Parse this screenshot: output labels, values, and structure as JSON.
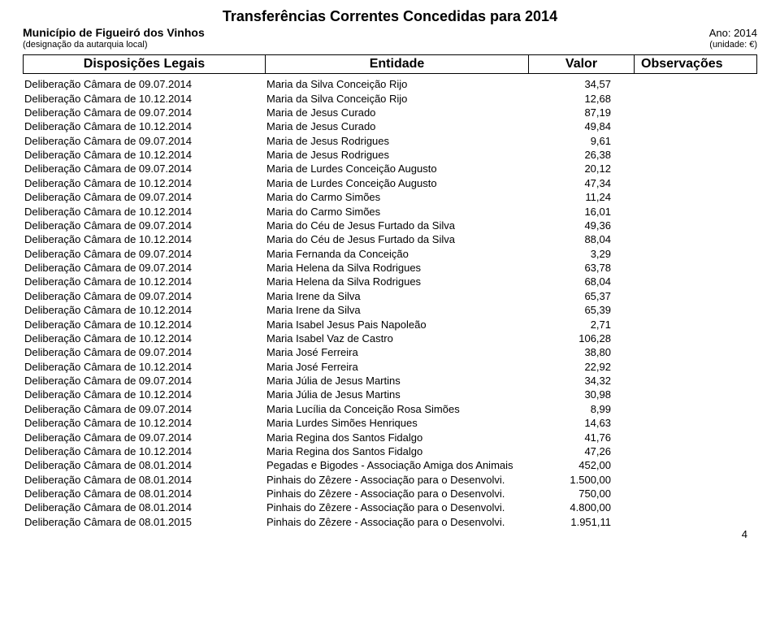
{
  "title": "Transferências Correntes Concedidas para 2014",
  "header": {
    "municipality": "Município de Figueiró dos Vinhos",
    "year_label": "Ano: 2014",
    "designation": "(designação da autarquia local)",
    "unit": "(unidade: €)"
  },
  "columns": {
    "disposicoes": "Disposições Legais",
    "entidade": "Entidade",
    "valor": "Valor",
    "observacoes": "Observações"
  },
  "rows": [
    {
      "d": "Deliberação Câmara de 09.07.2014",
      "e": "Maria da Silva Conceição Rijo",
      "v": "34,57"
    },
    {
      "d": "Deliberação Câmara de 10.12.2014",
      "e": "Maria da Silva Conceição Rijo",
      "v": "12,68"
    },
    {
      "d": "Deliberação Câmara de 09.07.2014",
      "e": "Maria de Jesus Curado",
      "v": "87,19"
    },
    {
      "d": "Deliberação Câmara de 10.12.2014",
      "e": "Maria de Jesus Curado",
      "v": "49,84"
    },
    {
      "d": "Deliberação Câmara de 09.07.2014",
      "e": "Maria de Jesus Rodrigues",
      "v": "9,61"
    },
    {
      "d": "Deliberação Câmara de 10.12.2014",
      "e": "Maria de Jesus Rodrigues",
      "v": "26,38"
    },
    {
      "d": "Deliberação Câmara de 09.07.2014",
      "e": "Maria de Lurdes Conceição Augusto",
      "v": "20,12"
    },
    {
      "d": "Deliberação Câmara de 10.12.2014",
      "e": "Maria de Lurdes Conceição Augusto",
      "v": "47,34"
    },
    {
      "d": "Deliberação Câmara de 09.07.2014",
      "e": "Maria do Carmo Simões",
      "v": "11,24"
    },
    {
      "d": "Deliberação Câmara de 10.12.2014",
      "e": "Maria do Carmo Simões",
      "v": "16,01"
    },
    {
      "d": "Deliberação Câmara de 09.07.2014",
      "e": "Maria do Céu de Jesus Furtado da Silva",
      "v": "49,36"
    },
    {
      "d": "Deliberação Câmara de 10.12.2014",
      "e": "Maria do Céu de Jesus Furtado da Silva",
      "v": "88,04"
    },
    {
      "d": "Deliberação Câmara de 09.07.2014",
      "e": "Maria Fernanda da Conceição",
      "v": "3,29"
    },
    {
      "d": "Deliberação Câmara de 09.07.2014",
      "e": "Maria Helena da Silva Rodrigues",
      "v": "63,78"
    },
    {
      "d": "Deliberação Câmara de 10.12.2014",
      "e": "Maria Helena da Silva Rodrigues",
      "v": "68,04"
    },
    {
      "d": "Deliberação Câmara de 09.07.2014",
      "e": "Maria Irene da Silva",
      "v": "65,37"
    },
    {
      "d": "Deliberação Câmara de 10.12.2014",
      "e": "Maria Irene da Silva",
      "v": "65,39"
    },
    {
      "d": "Deliberação Câmara de 10.12.2014",
      "e": "Maria Isabel Jesus Pais Napoleão",
      "v": "2,71"
    },
    {
      "d": "Deliberação Câmara de 10.12.2014",
      "e": "Maria Isabel Vaz de Castro",
      "v": "106,28"
    },
    {
      "d": "Deliberação Câmara de 09.07.2014",
      "e": "Maria José Ferreira",
      "v": "38,80"
    },
    {
      "d": "Deliberação Câmara de 10.12.2014",
      "e": "Maria José Ferreira",
      "v": "22,92"
    },
    {
      "d": "Deliberação Câmara de 09.07.2014",
      "e": "Maria Júlia de Jesus Martins",
      "v": "34,32"
    },
    {
      "d": "Deliberação Câmara de 10.12.2014",
      "e": "Maria Júlia de Jesus Martins",
      "v": "30,98"
    },
    {
      "d": "Deliberação Câmara de 09.07.2014",
      "e": "Maria Lucília da Conceição Rosa Simões",
      "v": "8,99"
    },
    {
      "d": "Deliberação Câmara de 10.12.2014",
      "e": "Maria Lurdes Simões Henriques",
      "v": "14,63"
    },
    {
      "d": "Deliberação Câmara de 09.07.2014",
      "e": "Maria Regina dos Santos Fidalgo",
      "v": "41,76"
    },
    {
      "d": "Deliberação Câmara de 10.12.2014",
      "e": "Maria Regina dos Santos Fidalgo",
      "v": "47,26"
    },
    {
      "d": "Deliberação Câmara de 08.01.2014",
      "e": "Pegadas e Bigodes - Associação Amiga dos Animais",
      "v": "452,00"
    },
    {
      "d": "Deliberação Câmara de 08.01.2014",
      "e": "Pinhais do Zêzere - Associação para o Desenvolvi.",
      "v": "1.500,00"
    },
    {
      "d": "Deliberação Câmara de 08.01.2014",
      "e": "Pinhais do Zêzere - Associação para o Desenvolvi.",
      "v": "750,00"
    },
    {
      "d": "Deliberação Câmara de 08.01.2014",
      "e": "Pinhais do Zêzere - Associação para o Desenvolvi.",
      "v": "4.800,00"
    },
    {
      "d": "Deliberação Câmara de 08.01.2015",
      "e": "Pinhais do Zêzere - Associação para o Desenvolvi.",
      "v": "1.951,11"
    }
  ],
  "page_number": "4"
}
